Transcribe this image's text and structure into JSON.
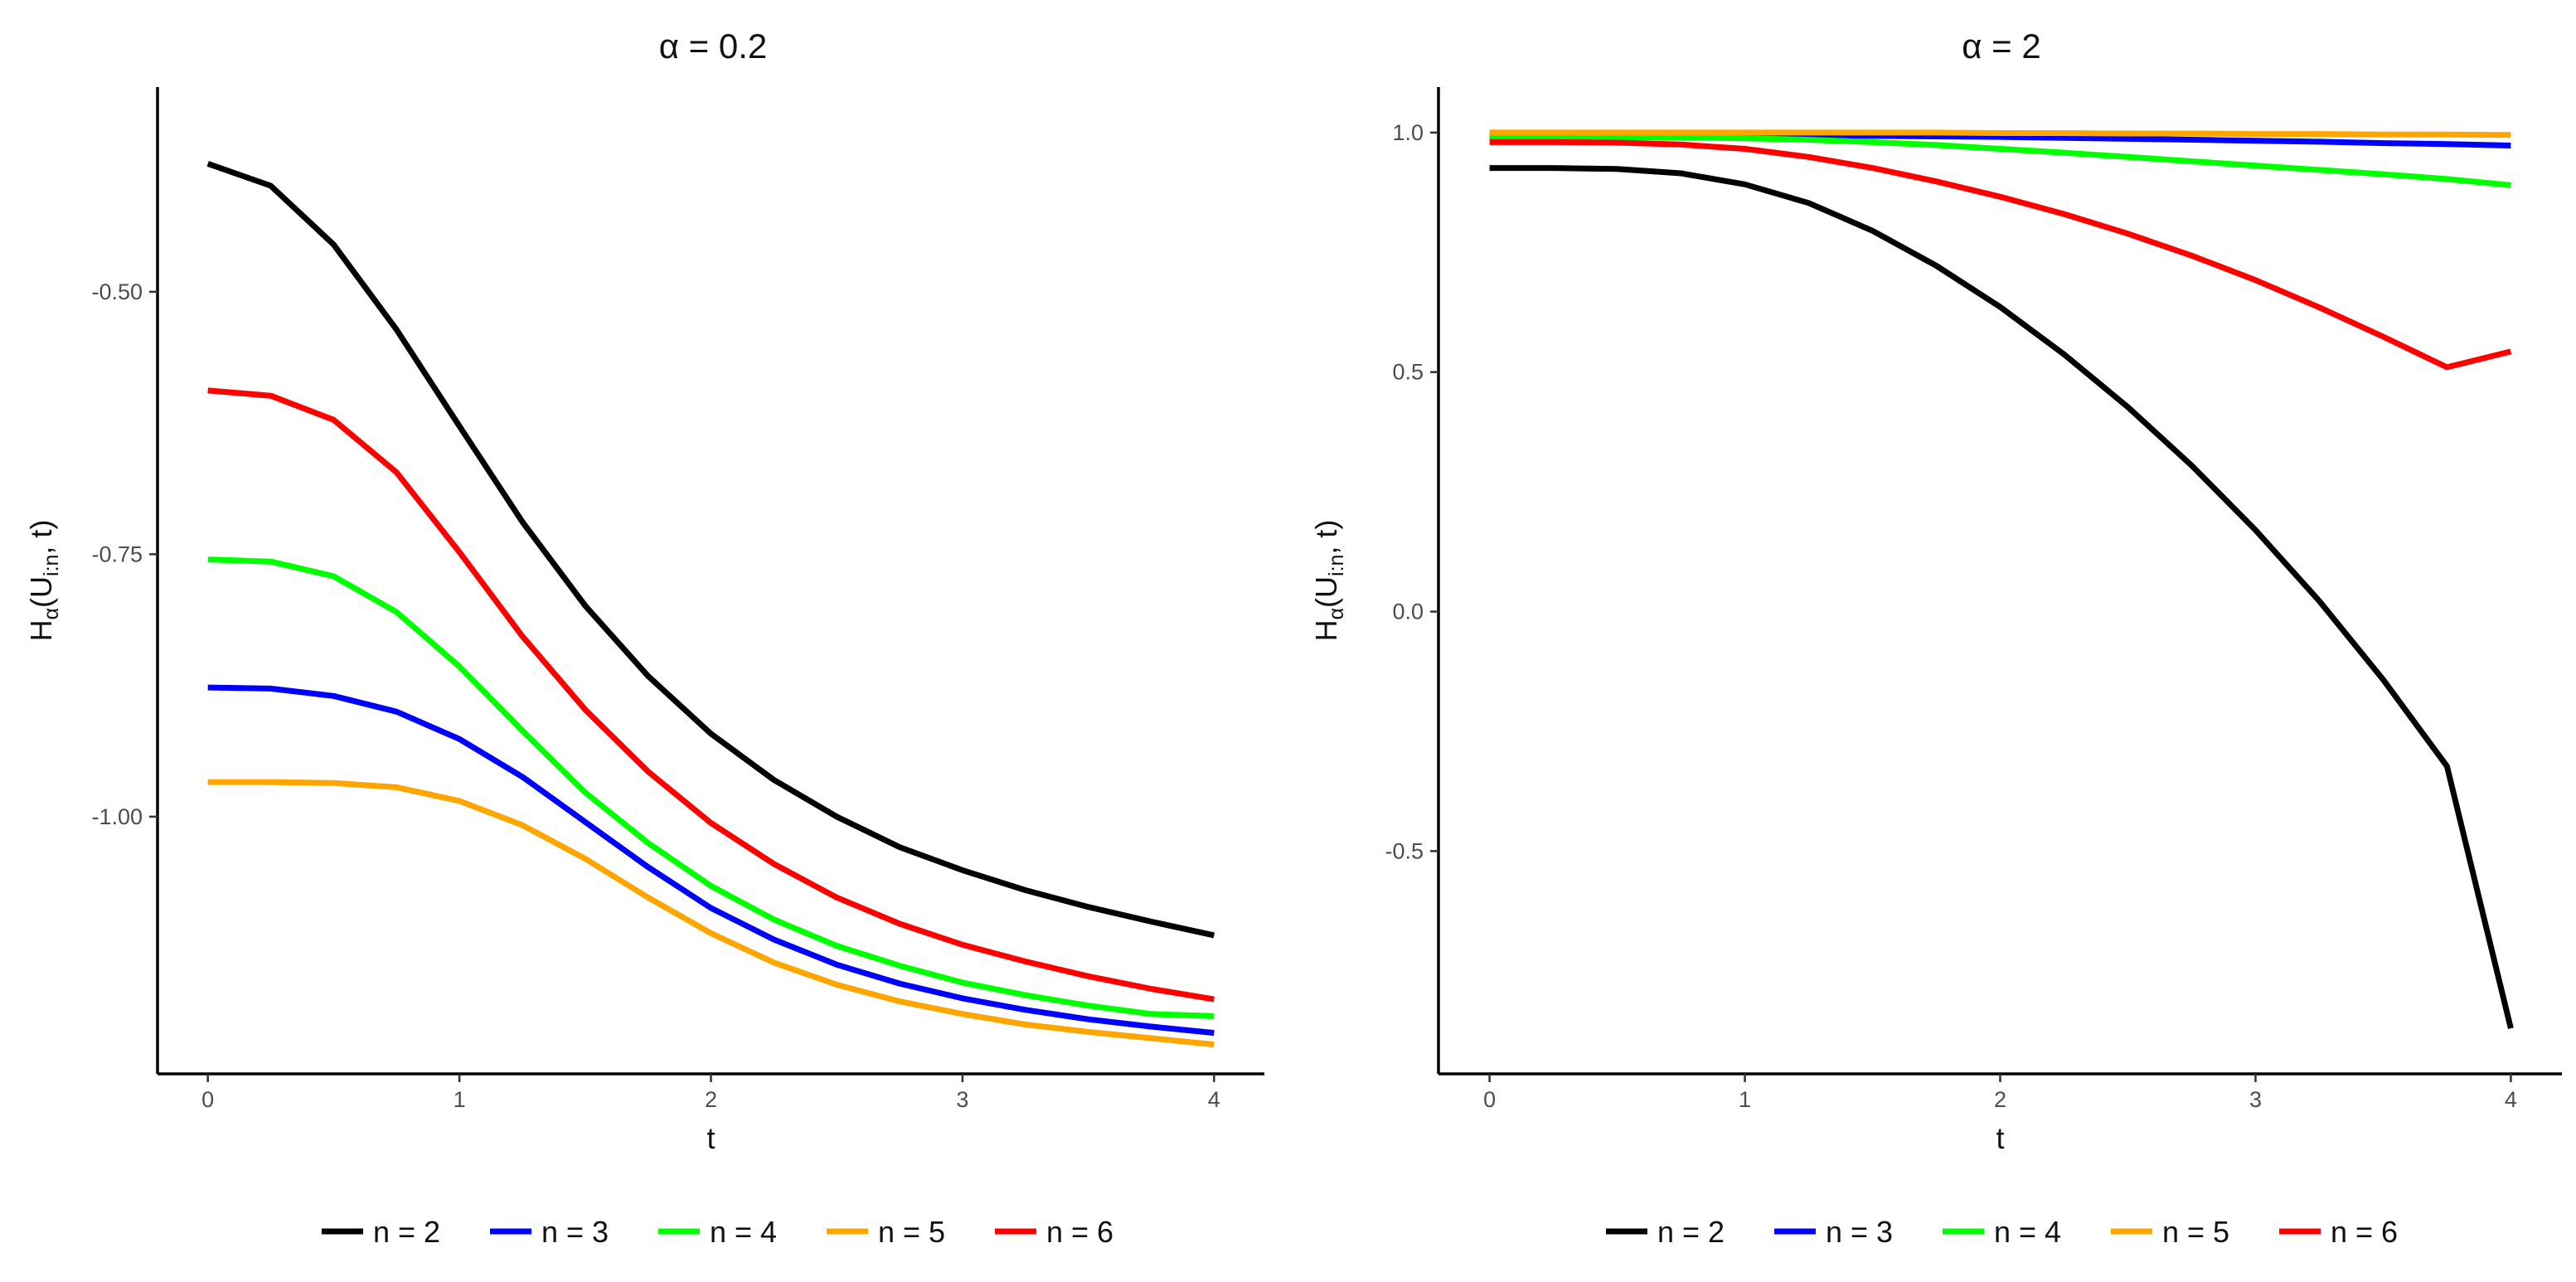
{
  "chart_data": [
    {
      "type": "line",
      "title": "α = 0.2",
      "xlabel": "t",
      "ylabel_main": "H",
      "ylabel_sub": "α",
      "ylabel_paren_open": "(U",
      "ylabel_paren_sub": "i:n",
      "ylabel_paren_close": ", t)",
      "xlim": [
        -0.2,
        4.2
      ],
      "ylim": [
        -1.245,
        -0.305
      ],
      "xticks": [
        0,
        1,
        2,
        3,
        4
      ],
      "xtick_labels": [
        "0",
        "1",
        "2",
        "3",
        "4"
      ],
      "yticks": [
        -0.5,
        -0.75,
        -1.0
      ],
      "ytick_labels": [
        "-0.50",
        "-0.75",
        "-1.00"
      ],
      "grid": false,
      "legend_position": "bottom",
      "x": [
        0,
        0.25,
        0.5,
        0.75,
        1,
        1.25,
        1.5,
        1.75,
        2,
        2.25,
        2.5,
        2.75,
        3,
        3.25,
        3.5,
        3.75,
        4
      ],
      "series": [
        {
          "name": "n = 2",
          "color": "#000000",
          "values": [
            -0.378,
            -0.399,
            -0.455,
            -0.536,
            -0.628,
            -0.719,
            -0.799,
            -0.866,
            -0.921,
            -0.965,
            -1.0,
            -1.029,
            -1.051,
            -1.07,
            -1.086,
            -1.1,
            -1.113
          ]
        },
        {
          "name": "n = 3",
          "color": "#0000ff",
          "values": [
            -0.877,
            -0.878,
            -0.885,
            -0.9,
            -0.926,
            -0.962,
            -1.005,
            -1.048,
            -1.087,
            -1.117,
            -1.141,
            -1.159,
            -1.173,
            -1.184,
            -1.193,
            -1.2,
            -1.206
          ]
        },
        {
          "name": "n = 4",
          "color": "#00ff00",
          "values": [
            -0.755,
            -0.757,
            -0.771,
            -0.805,
            -0.857,
            -0.918,
            -0.977,
            -1.025,
            -1.066,
            -1.098,
            -1.123,
            -1.142,
            -1.158,
            -1.17,
            -1.18,
            -1.188,
            -1.19
          ]
        },
        {
          "name": "n = 5",
          "color": "#ffa500",
          "values": [
            -0.967,
            -0.967,
            -0.968,
            -0.972,
            -0.985,
            -1.008,
            -1.04,
            -1.077,
            -1.111,
            -1.139,
            -1.16,
            -1.176,
            -1.188,
            -1.198,
            -1.205,
            -1.211,
            -1.217
          ]
        },
        {
          "name": "n = 6",
          "color": "#ff0000",
          "values": [
            -0.594,
            -0.599,
            -0.622,
            -0.672,
            -0.748,
            -0.828,
            -0.898,
            -0.957,
            -1.006,
            -1.045,
            -1.077,
            -1.102,
            -1.122,
            -1.138,
            -1.152,
            -1.164,
            -1.174
          ]
        }
      ]
    },
    {
      "type": "line",
      "title": "α = 2",
      "xlabel": "t",
      "ylabel_main": "H",
      "ylabel_sub": "α",
      "ylabel_paren_open": "(U",
      "ylabel_paren_sub": "i:n",
      "ylabel_paren_close": ", t)",
      "xlim": [
        -0.2,
        4.2
      ],
      "ylim": [
        -0.965,
        1.095
      ],
      "xticks": [
        0,
        1,
        2,
        3,
        4
      ],
      "xtick_labels": [
        "0",
        "1",
        "2",
        "3",
        "4"
      ],
      "yticks": [
        1.0,
        0.5,
        0.0,
        -0.5
      ],
      "ytick_labels": [
        "1.0",
        "0.5",
        "0.0",
        "-0.5"
      ],
      "grid": false,
      "legend_position": "bottom",
      "x": [
        0,
        0.25,
        0.5,
        0.75,
        1,
        1.25,
        1.5,
        1.75,
        2,
        2.25,
        2.5,
        2.75,
        3,
        3.25,
        3.5,
        3.75,
        4
      ],
      "series": [
        {
          "name": "n = 2",
          "color": "#000000",
          "values": [
            0.926,
            0.926,
            0.924,
            0.915,
            0.892,
            0.853,
            0.795,
            0.722,
            0.636,
            0.537,
            0.427,
            0.305,
            0.17,
            0.022,
            -0.142,
            -0.323,
            -0.87
          ]
        },
        {
          "name": "n = 3",
          "color": "#0000ff",
          "values": [
            0.995,
            0.995,
            0.995,
            0.995,
            0.995,
            0.994,
            0.993,
            0.992,
            0.991,
            0.989,
            0.987,
            0.985,
            0.983,
            0.981,
            0.978,
            0.976,
            0.973
          ]
        },
        {
          "name": "n = 4",
          "color": "#00ff00",
          "values": [
            0.99,
            0.99,
            0.99,
            0.99,
            0.988,
            0.985,
            0.98,
            0.974,
            0.966,
            0.958,
            0.949,
            0.94,
            0.931,
            0.922,
            0.913,
            0.903,
            0.89
          ]
        },
        {
          "name": "n = 5",
          "color": "#ffa500",
          "values": [
            1.0,
            1.0,
            1.0,
            1.0,
            1.0,
            1.0,
            1.0,
            1.0,
            0.999,
            0.999,
            0.998,
            0.998,
            0.997,
            0.997,
            0.996,
            0.996,
            0.995
          ]
        },
        {
          "name": "n = 6",
          "color": "#ff0000",
          "values": [
            0.98,
            0.98,
            0.979,
            0.975,
            0.966,
            0.949,
            0.926,
            0.898,
            0.866,
            0.83,
            0.789,
            0.743,
            0.692,
            0.635,
            0.574,
            0.51,
            0.543
          ]
        }
      ]
    }
  ]
}
